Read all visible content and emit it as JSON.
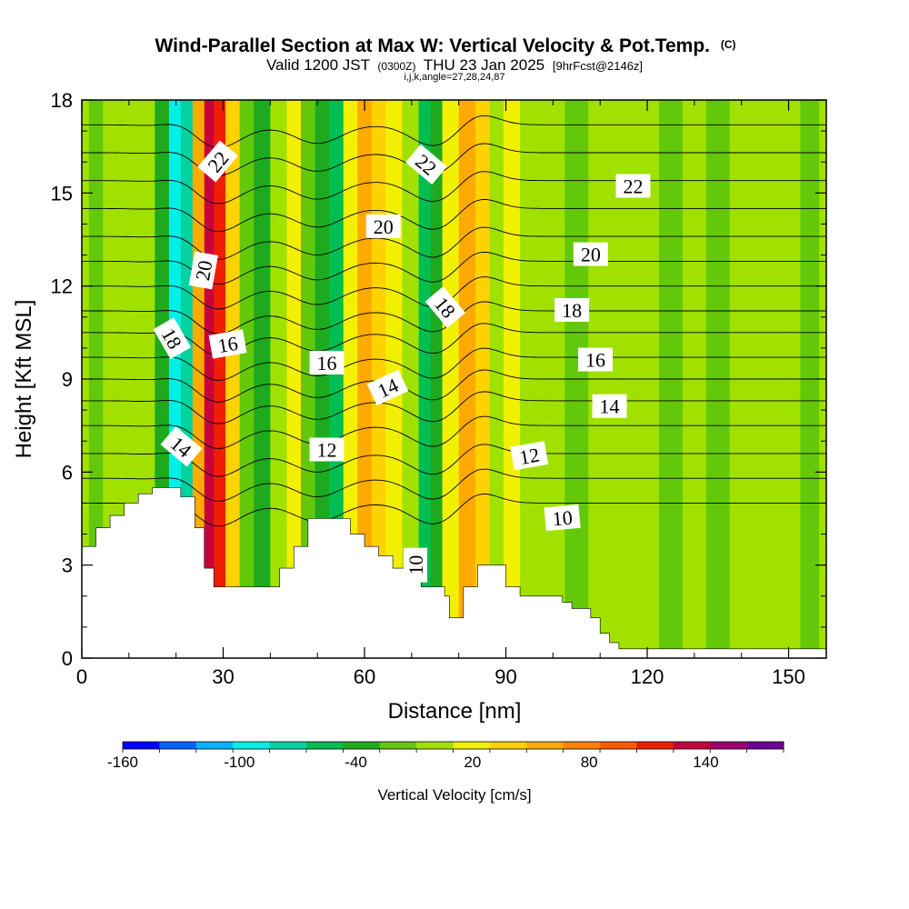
{
  "header": {
    "title": "Wind-Parallel Section at Max W: Vertical Velocity & Pot.Temp.",
    "title_mark": "(C)",
    "valid_prefix": "Valid 1200 JST",
    "valid_utc": "(0300Z)",
    "valid_date": "THU 23 Jan 2025",
    "forecast": "[9hrFcst@2146z]",
    "indices": "i,j,k,angle=27,28,24,87"
  },
  "chart_data": {
    "type": "heatmap",
    "xlabel": "Distance [nm]",
    "ylabel": "Height [Kft MSL]",
    "xlim": [
      0,
      158
    ],
    "ylim": [
      0,
      18
    ],
    "xticks": [
      0,
      30,
      60,
      90,
      120,
      150
    ],
    "yticks": [
      0,
      3,
      6,
      9,
      12,
      15,
      18
    ],
    "xtick_labels": [
      "0",
      "30",
      "60",
      "90",
      "120",
      "150"
    ],
    "ytick_labels": [
      "0",
      "3",
      "6",
      "9",
      "12",
      "15",
      "18"
    ],
    "colorbar": {
      "label": "Vertical Velocity [cm/s]",
      "tick_labels": [
        "-160",
        "-100",
        "-40",
        "20",
        "80",
        "140"
      ],
      "tick_values": [
        -160,
        -100,
        -40,
        20,
        80,
        140
      ],
      "min": -160,
      "max": 180,
      "step": 20,
      "colors": [
        "#0000ff",
        "#0064ff",
        "#00b4ff",
        "#00f0e6",
        "#00d2a0",
        "#00be50",
        "#1eaa1e",
        "#64c80a",
        "#a0e100",
        "#f0f000",
        "#ffd200",
        "#ffaa00",
        "#ff8200",
        "#ff5a00",
        "#f01e00",
        "#c8003c",
        "#a0006e",
        "#6e0096"
      ]
    },
    "velocity_columns": [
      {
        "x": 0,
        "w": 0
      },
      {
        "x": 3,
        "w": -20
      },
      {
        "x": 6,
        "w": 10
      },
      {
        "x": 10,
        "w": 0
      },
      {
        "x": 14,
        "w": 10
      },
      {
        "x": 17,
        "w": -40
      },
      {
        "x": 20,
        "w": -100
      },
      {
        "x": 22,
        "w": -80
      },
      {
        "x": 25,
        "w": 60
      },
      {
        "x": 27,
        "w": 140
      },
      {
        "x": 29,
        "w": 120
      },
      {
        "x": 32,
        "w": 40
      },
      {
        "x": 35,
        "w": -20
      },
      {
        "x": 38,
        "w": -40
      },
      {
        "x": 42,
        "w": 0
      },
      {
        "x": 45,
        "w": 20
      },
      {
        "x": 48,
        "w": -20
      },
      {
        "x": 51,
        "w": -40
      },
      {
        "x": 54,
        "w": -60
      },
      {
        "x": 57,
        "w": 20
      },
      {
        "x": 60,
        "w": 60
      },
      {
        "x": 63,
        "w": 40
      },
      {
        "x": 66,
        "w": 20
      },
      {
        "x": 70,
        "w": 0
      },
      {
        "x": 73,
        "w": -60
      },
      {
        "x": 75,
        "w": -40
      },
      {
        "x": 78,
        "w": 20
      },
      {
        "x": 82,
        "w": 60
      },
      {
        "x": 85,
        "w": 40
      },
      {
        "x": 88,
        "w": 0
      },
      {
        "x": 91,
        "w": 20
      },
      {
        "x": 95,
        "w": 0
      },
      {
        "x": 100,
        "w": 10
      },
      {
        "x": 105,
        "w": -10
      },
      {
        "x": 110,
        "w": 10
      },
      {
        "x": 115,
        "w": 0
      },
      {
        "x": 120,
        "w": 10
      },
      {
        "x": 125,
        "w": -10
      },
      {
        "x": 130,
        "w": 10
      },
      {
        "x": 135,
        "w": -10
      },
      {
        "x": 140,
        "w": 10
      },
      {
        "x": 145,
        "w": 0
      },
      {
        "x": 150,
        "w": 10
      },
      {
        "x": 155,
        "w": -10
      },
      {
        "x": 158,
        "w": 0
      }
    ],
    "terrain": [
      {
        "x": 0,
        "h": 3.6
      },
      {
        "x": 3,
        "h": 4.2
      },
      {
        "x": 6,
        "h": 4.6
      },
      {
        "x": 9,
        "h": 5.0
      },
      {
        "x": 12,
        "h": 5.3
      },
      {
        "x": 15,
        "h": 5.5
      },
      {
        "x": 21,
        "h": 5.2
      },
      {
        "x": 24,
        "h": 4.2
      },
      {
        "x": 26,
        "h": 2.9
      },
      {
        "x": 28,
        "h": 2.3
      },
      {
        "x": 34,
        "h": 2.3
      },
      {
        "x": 39,
        "h": 2.3
      },
      {
        "x": 42,
        "h": 2.9
      },
      {
        "x": 45,
        "h": 3.6
      },
      {
        "x": 48,
        "h": 4.5
      },
      {
        "x": 57,
        "h": 4.0
      },
      {
        "x": 60,
        "h": 3.6
      },
      {
        "x": 63,
        "h": 3.3
      },
      {
        "x": 66,
        "h": 2.9
      },
      {
        "x": 70,
        "h": 2.6
      },
      {
        "x": 72,
        "h": 2.3
      },
      {
        "x": 77,
        "h": 2.0
      },
      {
        "x": 78,
        "h": 1.3
      },
      {
        "x": 81,
        "h": 2.3
      },
      {
        "x": 84,
        "h": 3.0
      },
      {
        "x": 90,
        "h": 2.3
      },
      {
        "x": 93,
        "h": 2.0
      },
      {
        "x": 102,
        "h": 1.8
      },
      {
        "x": 104,
        "h": 1.6
      },
      {
        "x": 108,
        "h": 1.3
      },
      {
        "x": 110,
        "h": 0.8
      },
      {
        "x": 112,
        "h": 0.5
      },
      {
        "x": 114,
        "h": 0.3
      },
      {
        "x": 158,
        "h": 0.3
      }
    ],
    "isentropes": [
      {
        "level": 10,
        "y": 5.0
      },
      {
        "level": 11,
        "y": 5.8
      },
      {
        "level": 12,
        "y": 6.6
      },
      {
        "level": 13,
        "y": 7.5
      },
      {
        "level": 14,
        "y": 8.3
      },
      {
        "level": 15,
        "y": 9.0
      },
      {
        "level": 16,
        "y": 9.7
      },
      {
        "level": 17,
        "y": 10.5
      },
      {
        "level": 18,
        "y": 11.2
      },
      {
        "level": 19,
        "y": 12.0
      },
      {
        "level": 20,
        "y": 12.8
      },
      {
        "level": 21,
        "y": 13.6
      },
      {
        "level": 22,
        "y": 14.5
      },
      {
        "level": 23,
        "y": 15.4
      },
      {
        "level": 24,
        "y": 16.3
      },
      {
        "level": 25,
        "y": 17.2
      }
    ],
    "contour_labels": [
      {
        "text": "22",
        "x": 29,
        "y": 16.0,
        "angle": -50
      },
      {
        "text": "22",
        "x": 73,
        "y": 15.9,
        "angle": 40
      },
      {
        "text": "22",
        "x": 117,
        "y": 15.2,
        "angle": 0
      },
      {
        "text": "20",
        "x": 26,
        "y": 12.5,
        "angle": -80
      },
      {
        "text": "20",
        "x": 64,
        "y": 13.9,
        "angle": 0
      },
      {
        "text": "20",
        "x": 108,
        "y": 13.0,
        "angle": 0
      },
      {
        "text": "18",
        "x": 19,
        "y": 10.3,
        "angle": 60
      },
      {
        "text": "18",
        "x": 77,
        "y": 11.3,
        "angle": 50
      },
      {
        "text": "18",
        "x": 104,
        "y": 11.2,
        "angle": 0
      },
      {
        "text": "16",
        "x": 31,
        "y": 10.1,
        "angle": -10
      },
      {
        "text": "16",
        "x": 52,
        "y": 9.5,
        "angle": 0
      },
      {
        "text": "16",
        "x": 109,
        "y": 9.6,
        "angle": 0
      },
      {
        "text": "14",
        "x": 21,
        "y": 6.8,
        "angle": 40
      },
      {
        "text": "14",
        "x": 65,
        "y": 8.7,
        "angle": -25
      },
      {
        "text": "14",
        "x": 112,
        "y": 8.1,
        "angle": 0
      },
      {
        "text": "12",
        "x": 52,
        "y": 6.7,
        "angle": 0
      },
      {
        "text": "12",
        "x": 95,
        "y": 6.5,
        "angle": -10
      },
      {
        "text": "10",
        "x": 102,
        "y": 4.5,
        "angle": -5
      },
      {
        "text": "10",
        "x": 71,
        "y": 3.0,
        "angle": -90
      }
    ]
  }
}
